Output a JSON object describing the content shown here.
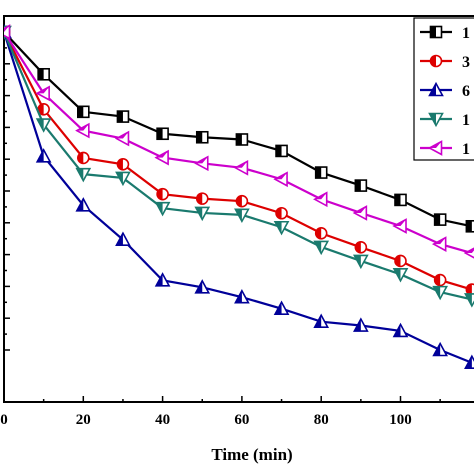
{
  "chart_data": {
    "type": "line",
    "xlabel": "Time (min)",
    "ylabel": "",
    "xlim": [
      0,
      118
    ],
    "ylim": [
      0,
      1.0
    ],
    "x_ticks": [
      0,
      20,
      40,
      60,
      80,
      100
    ],
    "x_tick_labels": [
      "0",
      "20",
      "40",
      "60",
      "80",
      "100"
    ],
    "grid": false,
    "legend_position": "top-right",
    "x": [
      0,
      10,
      20,
      30,
      40,
      50,
      60,
      70,
      80,
      90,
      100,
      110,
      118
    ],
    "series": [
      {
        "name": "1",
        "color": "#000000",
        "marker": "square-half",
        "values": [
          1.0,
          0.867,
          0.749,
          0.734,
          0.68,
          0.669,
          0.662,
          0.626,
          0.558,
          0.517,
          0.472,
          0.41,
          0.389
        ]
      },
      {
        "name": "3",
        "color": "#dd0000",
        "marker": "circle-half",
        "values": [
          1.0,
          0.757,
          0.604,
          0.584,
          0.49,
          0.476,
          0.468,
          0.43,
          0.367,
          0.323,
          0.28,
          0.22,
          0.19
        ]
      },
      {
        "name": "6",
        "color": "#000099",
        "marker": "triangle-up-half",
        "values": [
          1.0,
          0.609,
          0.455,
          0.347,
          0.219,
          0.197,
          0.166,
          0.13,
          0.089,
          0.077,
          0.06,
          0.0,
          -0.04
        ]
      },
      {
        "name": "1",
        "color": "#1a7a6e",
        "marker": "triangle-down-half",
        "values": [
          1.0,
          0.709,
          0.553,
          0.541,
          0.446,
          0.431,
          0.425,
          0.386,
          0.324,
          0.28,
          0.238,
          0.182,
          0.159
        ]
      },
      {
        "name": "1",
        "color": "#cc00cc",
        "marker": "triangle-left-half",
        "values": [
          1.0,
          0.807,
          0.69,
          0.665,
          0.605,
          0.587,
          0.573,
          0.537,
          0.474,
          0.431,
          0.39,
          0.333,
          0.305
        ]
      }
    ]
  }
}
